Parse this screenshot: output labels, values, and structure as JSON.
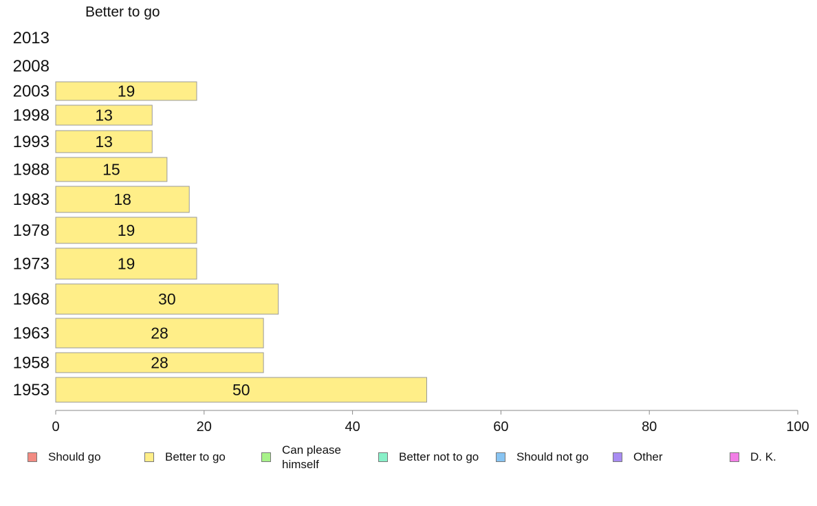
{
  "chart_data": {
    "type": "bar",
    "orientation": "horizontal",
    "title": "Better to go",
    "categories": [
      "2013",
      "2008",
      "2003",
      "1998",
      "1993",
      "1988",
      "1983",
      "1978",
      "1973",
      "1968",
      "1963",
      "1958",
      "1953"
    ],
    "values": [
      null,
      null,
      19,
      13,
      13,
      15,
      18,
      19,
      19,
      30,
      28,
      28,
      50
    ],
    "xlim": [
      0,
      100
    ],
    "xticks": [
      0,
      20,
      40,
      60,
      80,
      100
    ],
    "grid": false,
    "legend_position": "bottom",
    "bar_color": "#FFEE88",
    "legend": [
      {
        "label": "Should go",
        "color": "#F28B82"
      },
      {
        "label": "Better to go",
        "color": "#FFEE88"
      },
      {
        "label": "Can please himself",
        "color": "#A8F28A"
      },
      {
        "label": "Better not to go",
        "color": "#88F0C8"
      },
      {
        "label": "Should not go",
        "color": "#88C4F2"
      },
      {
        "label": "Other",
        "color": "#A88CF2"
      },
      {
        "label": "D. K.",
        "color": "#F27FE6"
      }
    ]
  }
}
